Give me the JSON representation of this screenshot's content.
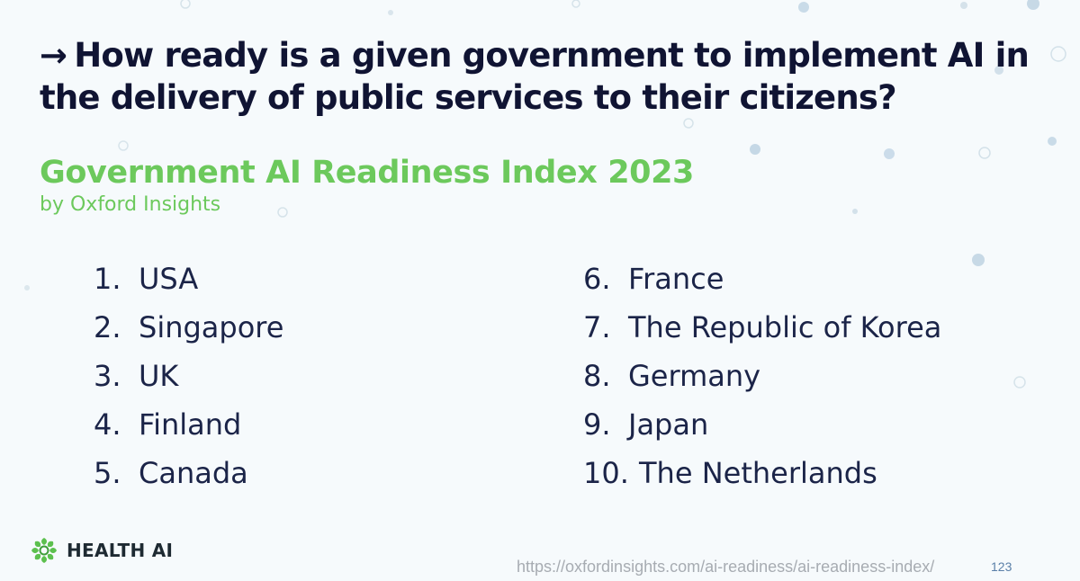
{
  "slide": {
    "question_arrow": "→",
    "question": "How ready is a given government to implement AI in the delivery of public services to their citizens?",
    "index_title": "Government AI Readiness Index 2023",
    "index_byline": "by Oxford Insights",
    "rankings_left": [
      {
        "number": "1.",
        "country": "USA"
      },
      {
        "number": "2.",
        "country": "Singapore"
      },
      {
        "number": "3.",
        "country": "UK"
      },
      {
        "number": "4.",
        "country": "Finland"
      },
      {
        "number": "5.",
        "country": "Canada"
      }
    ],
    "rankings_right": [
      {
        "number": "6.",
        "country": "France"
      },
      {
        "number": "7.",
        "country": "The Republic of Korea"
      },
      {
        "number": "8.",
        "country": "Germany"
      },
      {
        "number": "9.",
        "country": "Japan"
      },
      {
        "number": "10.",
        "country": "The Netherlands"
      }
    ],
    "logo_text": "HEALTH AI",
    "logo_icon": "gear-leaf-icon",
    "source_url": "https://oxfordinsights.com/ai-readiness/ai-readiness-index/",
    "page_number": "123",
    "colors": {
      "title_dark": "#101433",
      "accent_green": "#6cc95c",
      "list_text": "#1b2448",
      "url_gray": "#a7acb2",
      "page_number_blue": "#5a7fa8"
    }
  }
}
